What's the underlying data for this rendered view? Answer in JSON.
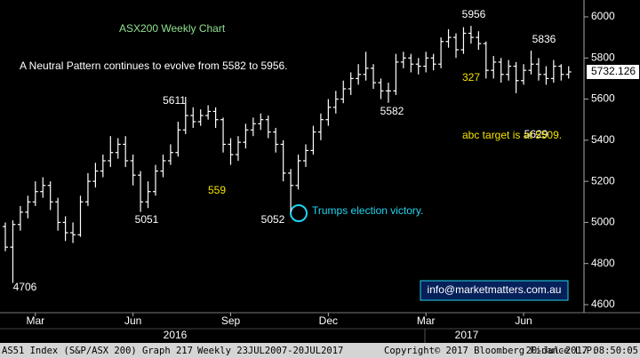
{
  "chart_data": {
    "type": "ohlc",
    "categories": [
      null,
      null,
      null,
      null,
      "Mar",
      null,
      null,
      null,
      null,
      null,
      null,
      null,
      null,
      null,
      null,
      null,
      null,
      "Jun",
      null,
      null,
      null,
      null,
      null,
      null,
      null,
      null,
      null,
      null,
      null,
      null,
      "Sep",
      null,
      null,
      null,
      null,
      null,
      null,
      null,
      null,
      null,
      null,
      null,
      null,
      "Dec",
      null,
      null,
      null,
      null,
      null,
      null,
      null,
      null,
      null,
      null,
      null,
      null,
      "Mar",
      null,
      null,
      null,
      null,
      null,
      null,
      null,
      null,
      null,
      null,
      null,
      null,
      "Jun",
      null,
      null,
      null,
      null,
      null,
      null
    ],
    "year_labels": [
      "2016",
      "2017"
    ],
    "open": [
      4980,
      4880,
      4990,
      5050,
      5100,
      5150,
      5180,
      5100,
      5000,
      4950,
      4940,
      5100,
      5200,
      5250,
      5300,
      5340,
      5380,
      5300,
      5230,
      5100,
      5150,
      5250,
      5300,
      5340,
      5450,
      5520,
      5490,
      5520,
      5540,
      5500,
      5380,
      5330,
      5390,
      5450,
      5480,
      5500,
      5440,
      5380,
      5240,
      5180,
      5300,
      5350,
      5440,
      5500,
      5560,
      5600,
      5650,
      5700,
      5720,
      5750,
      5680,
      5640,
      5640,
      5780,
      5800,
      5770,
      5760,
      5800,
      5770,
      5880,
      5900,
      5840,
      5920,
      5900,
      5870,
      5740,
      5780,
      5720,
      5760,
      5690,
      5740,
      5770,
      5720,
      5700,
      5760,
      5720
    ],
    "high": [
      5000,
      5010,
      5080,
      5130,
      5200,
      5220,
      5200,
      5120,
      5030,
      5000,
      5130,
      5240,
      5290,
      5330,
      5420,
      5410,
      5420,
      5330,
      5250,
      5200,
      5280,
      5330,
      5380,
      5490,
      5611,
      5560,
      5550,
      5570,
      5560,
      5510,
      5410,
      5420,
      5480,
      5510,
      5530,
      5520,
      5460,
      5400,
      5260,
      5330,
      5380,
      5470,
      5530,
      5600,
      5640,
      5690,
      5730,
      5770,
      5830,
      5770,
      5700,
      5680,
      5820,
      5830,
      5820,
      5800,
      5830,
      5820,
      5900,
      5940,
      5920,
      5950,
      5956,
      5930,
      5880,
      5810,
      5800,
      5790,
      5780,
      5770,
      5836,
      5800,
      5760,
      5790,
      5770,
      5760
    ],
    "low": [
      4860,
      4706,
      4960,
      5020,
      5080,
      5120,
      5060,
      4960,
      4910,
      4900,
      4930,
      5080,
      5170,
      5220,
      5270,
      5310,
      5270,
      5180,
      5051,
      5070,
      5130,
      5220,
      5280,
      5320,
      5430,
      5460,
      5470,
      5500,
      5460,
      5340,
      5280,
      5300,
      5360,
      5420,
      5450,
      5410,
      5340,
      5200,
      5052,
      5160,
      5270,
      5330,
      5400,
      5470,
      5530,
      5580,
      5620,
      5670,
      5690,
      5650,
      5600,
      5582,
      5620,
      5750,
      5730,
      5720,
      5730,
      5740,
      5750,
      5850,
      5800,
      5820,
      5870,
      5840,
      5700,
      5700,
      5680,
      5690,
      5629,
      5670,
      5720,
      5690,
      5670,
      5680,
      5690,
      5700
    ],
    "close": [
      4880,
      4990,
      5050,
      5100,
      5150,
      5180,
      5100,
      5000,
      4950,
      4940,
      5100,
      5200,
      5250,
      5300,
      5340,
      5380,
      5300,
      5230,
      5100,
      5150,
      5250,
      5300,
      5340,
      5450,
      5520,
      5490,
      5520,
      5540,
      5500,
      5380,
      5330,
      5390,
      5450,
      5480,
      5500,
      5440,
      5380,
      5240,
      5180,
      5300,
      5350,
      5440,
      5500,
      5560,
      5600,
      5650,
      5700,
      5720,
      5750,
      5680,
      5640,
      5640,
      5780,
      5800,
      5770,
      5760,
      5800,
      5770,
      5880,
      5900,
      5840,
      5920,
      5900,
      5870,
      5740,
      5780,
      5720,
      5760,
      5690,
      5740,
      5770,
      5720,
      5700,
      5760,
      5720,
      5732.126
    ],
    "color": "#ffffff",
    "ylim": [
      4561,
      6082
    ],
    "yticks": [
      4600,
      4800,
      5000,
      5200,
      5400,
      5600,
      5800,
      6000
    ],
    "grid": false,
    "annotations": [
      {
        "text": "ASX200 Weekly Chart",
        "color": "#8fe08f"
      },
      {
        "text": "A Neutral Pattern continues to evolve from 5582 to 5956.",
        "color": "#ffffff"
      },
      {
        "text": "5956",
        "color": "#ffffff"
      },
      {
        "text": "5836",
        "color": "#ffffff"
      },
      {
        "text": "327",
        "color": "#f5e400"
      },
      {
        "text": "5582",
        "color": "#ffffff"
      },
      {
        "text": "5629",
        "color": "#ffffff"
      },
      {
        "text": "abc target is at 5509.",
        "color": "#f5e400"
      },
      {
        "text": "5611",
        "color": "#ffffff"
      },
      {
        "text": "559",
        "color": "#f5e400"
      },
      {
        "text": "5051",
        "color": "#ffffff"
      },
      {
        "text": "5052",
        "color": "#ffffff"
      },
      {
        "text": "4706",
        "color": "#ffffff"
      },
      {
        "text": "Trumps election victory.",
        "color": "#22d3f0"
      },
      {
        "text": "info@marketmatters.com.au",
        "color": "#ffffff"
      }
    ]
  },
  "footer": {
    "index": "AS51 Index (S&P/ASX 200) Graph 217",
    "period": "Weekly 23JUL2007-20JUL2017",
    "copyright": "Copyright© 2017 Bloomberg Finance L.P.",
    "timestamp": "20-Jul-2017 08:50:05"
  }
}
